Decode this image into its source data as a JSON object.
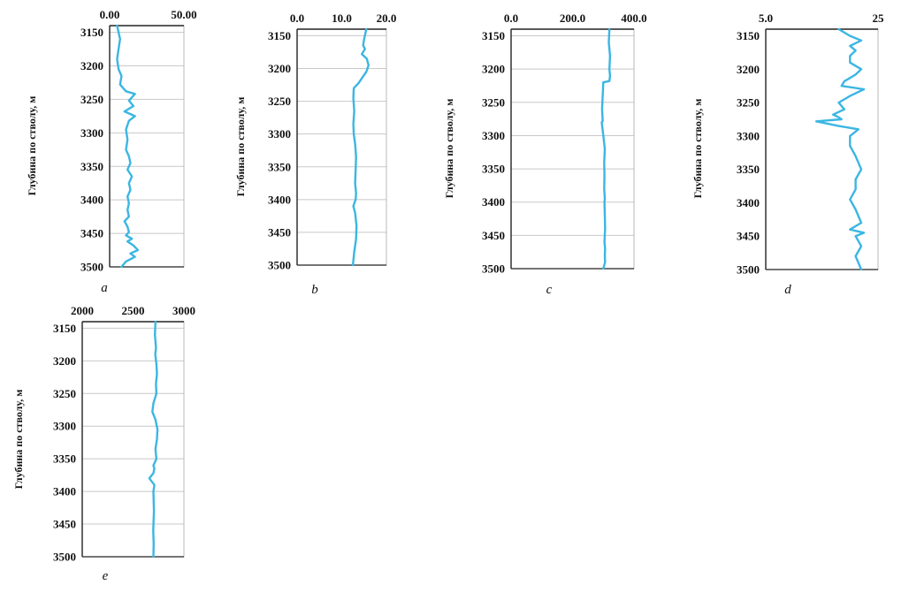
{
  "chart_data": [
    {
      "panel": "a",
      "type": "line",
      "ylabel": "Глубина по стволу, м",
      "xlim": [
        0,
        50
      ],
      "ylim": [
        3500,
        3140
      ],
      "xticks": [
        "0.00",
        "50.00"
      ],
      "yticks": [
        "3150",
        "3200",
        "3250",
        "3300",
        "3350",
        "3400",
        "3450",
        "3500"
      ],
      "grid": true,
      "series_color": "#3bb6e3",
      "series": [
        {
          "x": [
            5,
            6,
            7,
            6,
            5,
            6,
            8,
            7,
            11,
            17,
            13,
            16,
            10,
            17,
            13,
            11,
            12,
            11,
            13,
            14,
            12,
            15,
            13,
            14,
            12,
            13,
            12,
            13,
            10,
            12,
            13,
            11,
            15,
            12,
            16,
            19,
            14,
            17,
            11,
            8
          ],
          "y": [
            3140,
            3150,
            3160,
            3175,
            3190,
            3205,
            3215,
            3228,
            3238,
            3242,
            3252,
            3260,
            3268,
            3275,
            3282,
            3295,
            3310,
            3325,
            3335,
            3345,
            3355,
            3365,
            3375,
            3385,
            3395,
            3405,
            3415,
            3425,
            3432,
            3440,
            3448,
            3453,
            3458,
            3462,
            3468,
            3475,
            3480,
            3485,
            3492,
            3500
          ]
        }
      ]
    },
    {
      "panel": "b",
      "type": "line",
      "ylabel": "Глубина по стволу, м",
      "xlim": [
        0,
        20
      ],
      "ylim": [
        3500,
        3140
      ],
      "xticks": [
        "0.0",
        "10.0",
        "20.0"
      ],
      "yticks": [
        "3150",
        "3200",
        "3250",
        "3300",
        "3350",
        "3400",
        "3450",
        "3500"
      ],
      "grid": true,
      "series_color": "#3bb6e3",
      "series": [
        {
          "x": [
            15.5,
            15,
            14.8,
            15.2,
            14.5,
            15.6,
            16,
            15.5,
            14.5,
            13.8,
            12.7,
            12.6,
            12.8,
            12.6,
            12.7,
            13,
            13.2,
            13.1,
            13,
            13.2,
            13.1,
            12.6,
            13,
            13.3,
            13.2,
            12.8,
            12.5
          ],
          "y": [
            3140,
            3155,
            3165,
            3170,
            3178,
            3185,
            3195,
            3205,
            3215,
            3222,
            3230,
            3245,
            3265,
            3285,
            3300,
            3315,
            3335,
            3355,
            3375,
            3390,
            3400,
            3410,
            3420,
            3440,
            3460,
            3480,
            3500
          ]
        }
      ]
    },
    {
      "panel": "c",
      "type": "line",
      "ylabel": "Глубина по стволу, м",
      "xlim": [
        0,
        400
      ],
      "ylim": [
        3500,
        3140
      ],
      "xticks": [
        "0.0",
        "200.0",
        "400.0"
      ],
      "yticks": [
        "3150",
        "3200",
        "3250",
        "3300",
        "3350",
        "3400",
        "3450",
        "3500"
      ],
      "grid": true,
      "series_color": "#3bb6e3",
      "series": [
        {
          "x": [
            320,
            318,
            322,
            320,
            322,
            320,
            300,
            298,
            296,
            298,
            295,
            300,
            305,
            303,
            304,
            303,
            305,
            304,
            305,
            306,
            304,
            306,
            305,
            306,
            300
          ],
          "y": [
            3140,
            3160,
            3180,
            3200,
            3210,
            3218,
            3220,
            3240,
            3260,
            3278,
            3280,
            3300,
            3320,
            3340,
            3360,
            3380,
            3395,
            3400,
            3420,
            3440,
            3460,
            3470,
            3480,
            3490,
            3500
          ]
        }
      ]
    },
    {
      "panel": "d",
      "type": "line",
      "ylabel": "Глубина по стволу, м",
      "xlim": [
        5,
        25
      ],
      "ylim": [
        3500,
        3140
      ],
      "xticks": [
        "5.0",
        "25"
      ],
      "yticks": [
        "3150",
        "3200",
        "3250",
        "3300",
        "3350",
        "3400",
        "3450",
        "3500"
      ],
      "grid": false,
      "series_color": "#3bb6e3",
      "series": [
        {
          "x": [
            18,
            20,
            22,
            20,
            21,
            20,
            20,
            22,
            21,
            20,
            19,
            18.5,
            22.5,
            20,
            18,
            19,
            17,
            18,
            18.5,
            14,
            18,
            21.5,
            20,
            20,
            21,
            22,
            21,
            21,
            20,
            21,
            22,
            20,
            22.5,
            21,
            22,
            21,
            21.5,
            22
          ],
          "y": [
            3140,
            3150,
            3157,
            3165,
            3172,
            3180,
            3190,
            3200,
            3208,
            3213,
            3218,
            3225,
            3230,
            3240,
            3250,
            3260,
            3268,
            3272,
            3275,
            3278,
            3285,
            3290,
            3300,
            3315,
            3330,
            3350,
            3365,
            3380,
            3395,
            3410,
            3430,
            3440,
            3445,
            3450,
            3465,
            3480,
            3490,
            3500
          ]
        }
      ]
    },
    {
      "panel": "e",
      "type": "line",
      "ylabel": "Глубина по стволу, м",
      "xlim": [
        2000,
        3000
      ],
      "ylim": [
        3500,
        3140
      ],
      "xticks": [
        "2000",
        "2500",
        "3000"
      ],
      "yticks": [
        "3150",
        "3200",
        "3250",
        "3300",
        "3350",
        "3400",
        "3450",
        "3500"
      ],
      "grid": true,
      "series_color": "#3bb6e3",
      "series": [
        {
          "x": [
            2720,
            2715,
            2725,
            2718,
            2730,
            2735,
            2725,
            2730,
            2700,
            2690,
            2720,
            2740,
            2735,
            2720,
            2730,
            2700,
            2710,
            2700,
            2660,
            2710,
            2700,
            2705,
            2698,
            2703,
            2700
          ],
          "y": [
            3140,
            3160,
            3180,
            3190,
            3205,
            3220,
            3235,
            3250,
            3265,
            3278,
            3290,
            3305,
            3320,
            3335,
            3350,
            3360,
            3365,
            3372,
            3380,
            3390,
            3400,
            3430,
            3460,
            3480,
            3500
          ]
        }
      ]
    }
  ]
}
